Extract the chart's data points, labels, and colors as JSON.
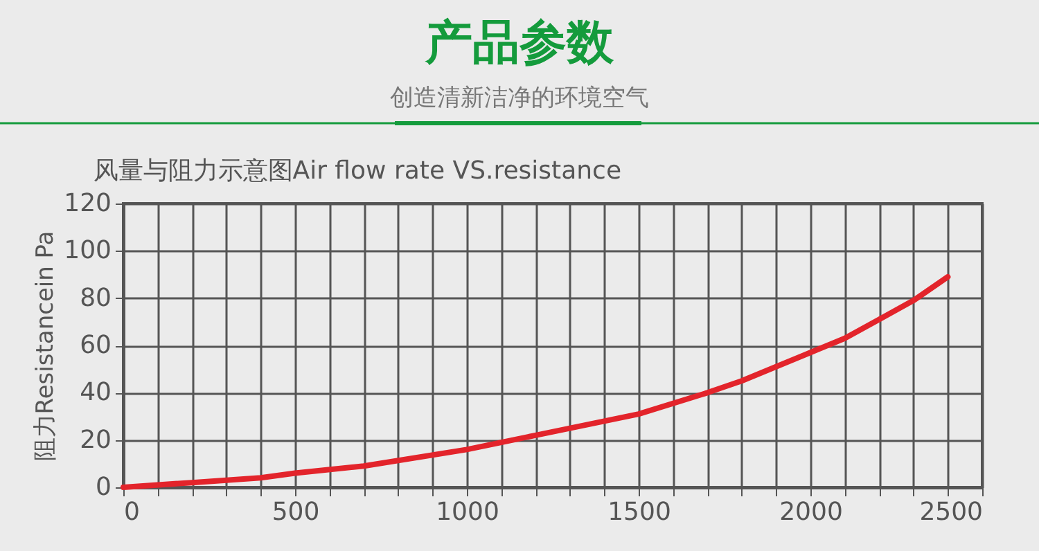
{
  "chart_data": {
    "type": "line",
    "title": "风量与阻力示意图Air flow rate VS.resistance",
    "annotations": [
      "产品参数",
      "创造清新洁净的环境空气"
    ],
    "ylabel": "阻力Resistancein Pa",
    "x": [
      0,
      200,
      400,
      500,
      700,
      1000,
      1100,
      1200,
      1500,
      1700,
      1800,
      1900,
      2000,
      2100,
      2200,
      2300,
      2400
    ],
    "series": [
      {
        "color": "#e3242b",
        "values": [
          0,
          2,
          4,
          6,
          9,
          16,
          19,
          22,
          31,
          40,
          45,
          51,
          57,
          63,
          71,
          79,
          89
        ]
      }
    ],
    "xlim": [
      0,
      2500
    ],
    "xticks": [
      0,
      {
        "value": 100,
        "label": null
      },
      {
        "value": 200,
        "label": null
      },
      {
        "value": 300,
        "label": null
      },
      {
        "value": 400,
        "label": null
      },
      500,
      {
        "value": 600,
        "label": null
      },
      {
        "value": 700,
        "label": null
      },
      {
        "value": 800,
        "label": null
      },
      {
        "value": 900,
        "label": null
      },
      1000,
      {
        "value": 1100,
        "label": null
      },
      {
        "value": 1200,
        "label": null
      },
      {
        "value": 1300,
        "label": null
      },
      {
        "value": 1400,
        "label": null
      },
      1500,
      {
        "value": 1600,
        "label": null
      },
      {
        "value": 1700,
        "label": null
      },
      {
        "value": 1800,
        "label": null
      },
      {
        "value": 1900,
        "label": null
      },
      2000,
      {
        "value": 2100,
        "label": null
      },
      {
        "value": 2200,
        "label": null
      },
      {
        "value": 2300,
        "label": null
      },
      {
        "value": 2400,
        "label": null
      },
      2500
    ],
    "ylim": [
      0,
      120
    ],
    "yticks": [
      0,
      20,
      40,
      60,
      80,
      100,
      120
    ],
    "grid": true,
    "legend": false,
    "marker": "none",
    "line_style": "solid"
  }
}
